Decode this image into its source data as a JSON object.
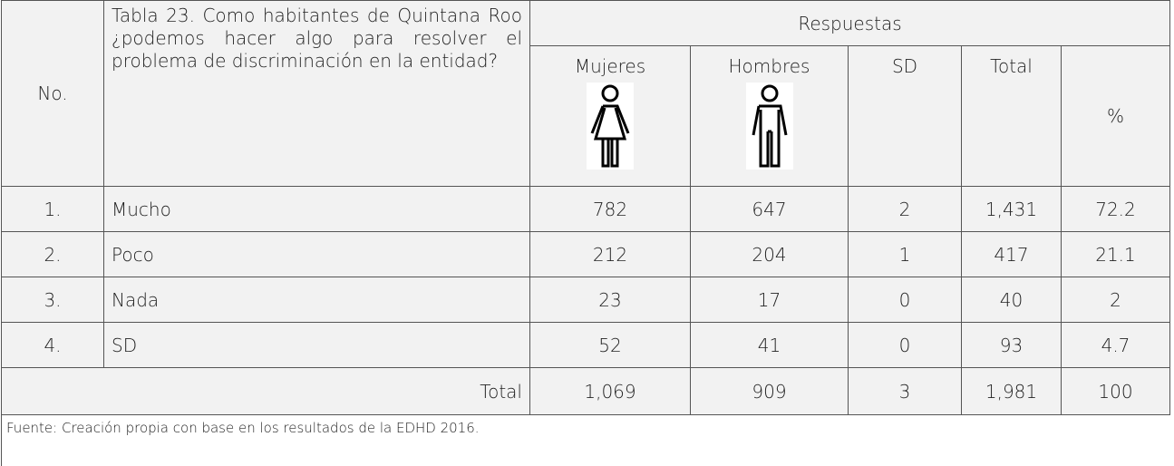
{
  "header": {
    "no": "No.",
    "question": "Tabla 23. Como habitantes de Quintana Roo ¿podemos hacer algo para resolver el problema de discriminación en la entidad?",
    "group": "Respuestas",
    "columns": [
      "Mujeres",
      "Hombres",
      "SD",
      "Total",
      "%"
    ]
  },
  "rows": [
    [
      "1.",
      "Mucho",
      "782",
      "647",
      "2",
      "1,431",
      "72.2"
    ],
    [
      "2.",
      "Poco",
      "212",
      "204",
      "1",
      "417",
      "21.1"
    ],
    [
      "3.",
      "Nada",
      "23",
      "17",
      "0",
      "40",
      "2"
    ],
    [
      "4.",
      "SD",
      "52",
      "41",
      "0",
      "93",
      "4.7"
    ]
  ],
  "total": {
    "label": "Total",
    "values": [
      "1,069",
      "909",
      "3",
      "1,981",
      "100"
    ]
  },
  "source": "Fuente: Creación propia con base en los resultados de la EDHD 2016."
}
